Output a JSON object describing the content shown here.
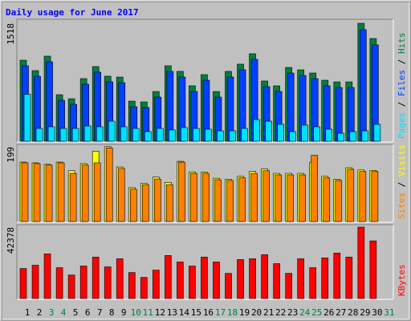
{
  "title": "Daily usage for June 2017",
  "categories": [
    "1",
    "2",
    "3",
    "4",
    "5",
    "6",
    "7",
    "8",
    "9",
    "10",
    "11",
    "12",
    "13",
    "14",
    "15",
    "16",
    "17",
    "18",
    "19",
    "20",
    "21",
    "22",
    "23",
    "24",
    "25",
    "26",
    "27",
    "28",
    "29",
    "30",
    "31"
  ],
  "category_colors": [
    "#000000",
    "#000000",
    "#008040",
    "#008040",
    "#000000",
    "#000000",
    "#000000",
    "#000000",
    "#000000",
    "#008040",
    "#008040",
    "#000000",
    "#000000",
    "#000000",
    "#000000",
    "#000000",
    "#008040",
    "#008040",
    "#000000",
    "#000000",
    "#000000",
    "#000000",
    "#000000",
    "#008040",
    "#008040",
    "#000000",
    "#000000",
    "#000000",
    "#000000",
    "#000000",
    "#008040"
  ],
  "legend_separator": " / ",
  "chart_data": [
    {
      "type": "bar",
      "ylim": [
        0,
        1570
      ],
      "yticks": [
        1518
      ],
      "series": [
        {
          "name": "Hits",
          "color": "#008040",
          "values": [
            1043,
            909,
            1095,
            599,
            547,
            806,
            961,
            837,
            826,
            516,
            506,
            640,
            971,
            899,
            713,
            857,
            640,
            899,
            992,
            1126,
            775,
            713,
            950,
            919,
            878,
            785,
            764,
            764,
            1518,
            1322,
            null
          ]
        },
        {
          "name": "Files",
          "color": "#0040ff",
          "values": [
            971,
            837,
            1023,
            527,
            475,
            734,
            889,
            765,
            754,
            444,
            434,
            568,
            899,
            827,
            641,
            785,
            568,
            827,
            920,
            1054,
            703,
            641,
            878,
            847,
            806,
            713,
            692,
            692,
            1436,
            1240,
            null
          ]
        },
        {
          "name": "Pages",
          "color": "#00e0ff",
          "values": [
            604,
            165,
            186,
            165,
            165,
            196,
            186,
            258,
            186,
            165,
            124,
            165,
            145,
            176,
            165,
            155,
            134,
            134,
            165,
            279,
            258,
            217,
            124,
            207,
            186,
            155,
            103,
            124,
            134,
            217,
            null
          ]
        }
      ]
    },
    {
      "type": "bar",
      "ylim": [
        0,
        205
      ],
      "yticks": [
        199
      ],
      "series": [
        {
          "name": "Visits",
          "color": "#ffff00",
          "values": [
            158,
            156,
            152,
            158,
            135,
            154,
            187,
            199,
            145,
            90,
            102,
            118,
            104,
            160,
            132,
            131,
            115,
            112,
            120,
            133,
            140,
            128,
            128,
            128,
            158,
            120,
            112,
            143,
            137,
            136,
            null
          ]
        },
        {
          "name": "Sites",
          "color": "#ff8000",
          "values": [
            156,
            154,
            150,
            156,
            128,
            150,
            156,
            196,
            141,
            86,
            98,
            113,
            98,
            158,
            128,
            128,
            111,
            109,
            116,
            128,
            135,
            124,
            124,
            124,
            176,
            116,
            109,
            139,
            133,
            133,
            null
          ]
        }
      ]
    },
    {
      "type": "bar",
      "ylim": [
        0,
        43800
      ],
      "yticks": [
        42378
      ],
      "series": [
        {
          "name": "KBytes",
          "color": "#ff0000",
          "values": [
            17819,
            19746,
            26488,
            18301,
            13966,
            19264,
            24562,
            18782,
            23598,
            15411,
            12522,
            16856,
            25525,
            21672,
            19264,
            24562,
            21672,
            14930,
            23117,
            23598,
            26006,
            20709,
            14930,
            23598,
            18301,
            24080,
            26970,
            24562,
            42378,
            34194,
            null
          ]
        }
      ]
    }
  ]
}
